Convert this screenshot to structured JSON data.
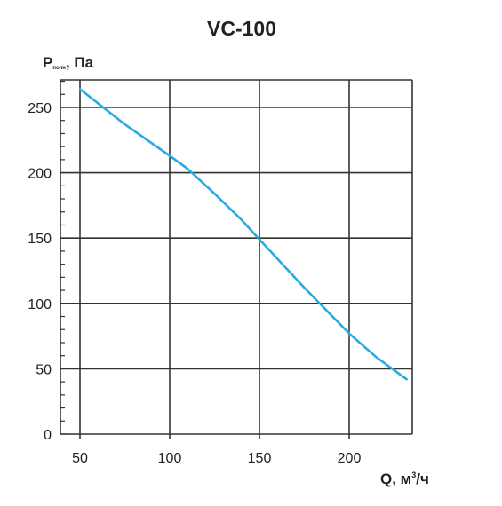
{
  "chart_data": {
    "type": "line",
    "title": "VC-100",
    "ylabel": {
      "main": "P",
      "sub": "полн",
      "rest": ", Па"
    },
    "xlabel": {
      "main": "Q, м",
      "sup": "3",
      "rest": "/ч"
    },
    "xlim": [
      50,
      232
    ],
    "ylim": [
      0,
      270
    ],
    "x_ticks": [
      50,
      100,
      150,
      200
    ],
    "y_ticks": [
      0,
      50,
      100,
      150,
      200,
      250
    ],
    "y_minor_step": 10,
    "grid": true,
    "series": [
      {
        "color": "#29ABE2",
        "x": [
          50,
          75,
          100,
          110,
          125,
          140,
          150,
          175,
          200,
          215,
          232
        ],
        "y": [
          264,
          237,
          213,
          203,
          184,
          164,
          149,
          112,
          77,
          59,
          42
        ]
      }
    ]
  }
}
